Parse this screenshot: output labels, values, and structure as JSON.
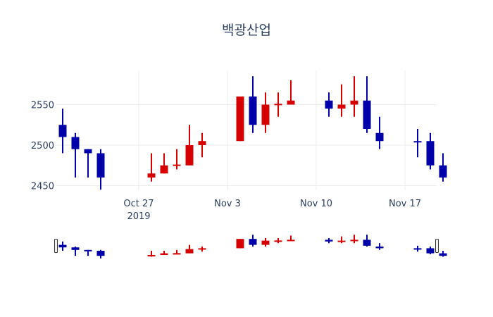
{
  "title": "백광산업",
  "colors": {
    "increasing": "#d60000",
    "decreasing": "#0000a8",
    "grid": "#eeeeee",
    "text": "#2a3f5f"
  },
  "chart_data": {
    "type": "candlestick",
    "title": "백광산업",
    "xlabel": "",
    "ylabel": "",
    "ylim": [
      2440,
      2590
    ],
    "yticks": [
      2450,
      2500,
      2550
    ],
    "xticks": [
      {
        "date": "2019-10-27",
        "label": "Oct 27",
        "sublabel": "2019"
      },
      {
        "date": "2019-11-03",
        "label": "Nov 3"
      },
      {
        "date": "2019-11-10",
        "label": "Nov 10"
      },
      {
        "date": "2019-11-17",
        "label": "Nov 17"
      }
    ],
    "xrange": [
      "2019-10-20.5",
      "2019-11-20.5"
    ],
    "rangeslider": true,
    "candles": [
      {
        "date": "2019-10-21",
        "open": 2525,
        "high": 2545,
        "low": 2490,
        "close": 2510
      },
      {
        "date": "2019-10-22",
        "open": 2510,
        "high": 2515,
        "low": 2460,
        "close": 2495
      },
      {
        "date": "2019-10-23",
        "open": 2495,
        "high": 2495,
        "low": 2460,
        "close": 2490
      },
      {
        "date": "2019-10-24",
        "open": 2490,
        "high": 2495,
        "low": 2445,
        "close": 2460
      },
      {
        "date": "2019-10-28",
        "open": 2460,
        "high": 2490,
        "low": 2455,
        "close": 2465
      },
      {
        "date": "2019-10-29",
        "open": 2465,
        "high": 2490,
        "low": 2465,
        "close": 2475
      },
      {
        "date": "2019-10-30",
        "open": 2475,
        "high": 2495,
        "low": 2470,
        "close": 2476
      },
      {
        "date": "2019-10-31",
        "open": 2475,
        "high": 2525,
        "low": 2475,
        "close": 2500
      },
      {
        "date": "2019-11-01",
        "open": 2500,
        "high": 2515,
        "low": 2485,
        "close": 2505
      },
      {
        "date": "2019-11-04",
        "open": 2505,
        "high": 2560,
        "low": 2505,
        "close": 2560
      },
      {
        "date": "2019-11-05",
        "open": 2560,
        "high": 2585,
        "low": 2515,
        "close": 2525
      },
      {
        "date": "2019-11-06",
        "open": 2525,
        "high": 2565,
        "low": 2515,
        "close": 2550
      },
      {
        "date": "2019-11-07",
        "open": 2550,
        "high": 2565,
        "low": 2535,
        "close": 2551
      },
      {
        "date": "2019-11-08",
        "open": 2550,
        "high": 2580,
        "low": 2550,
        "close": 2555
      },
      {
        "date": "2019-11-11",
        "open": 2555,
        "high": 2565,
        "low": 2535,
        "close": 2545
      },
      {
        "date": "2019-11-12",
        "open": 2545,
        "high": 2575,
        "low": 2535,
        "close": 2550
      },
      {
        "date": "2019-11-13",
        "open": 2550,
        "high": 2585,
        "low": 2535,
        "close": 2555
      },
      {
        "date": "2019-11-14",
        "open": 2555,
        "high": 2585,
        "low": 2515,
        "close": 2520
      },
      {
        "date": "2019-11-15",
        "open": 2515,
        "high": 2535,
        "low": 2495,
        "close": 2505
      },
      {
        "date": "2019-11-18",
        "open": 2505,
        "high": 2520,
        "low": 2485,
        "close": 2504
      },
      {
        "date": "2019-11-19",
        "open": 2505,
        "high": 2515,
        "low": 2470,
        "close": 2475
      },
      {
        "date": "2019-11-20",
        "open": 2475,
        "high": 2490,
        "low": 2455,
        "close": 2460
      }
    ]
  }
}
